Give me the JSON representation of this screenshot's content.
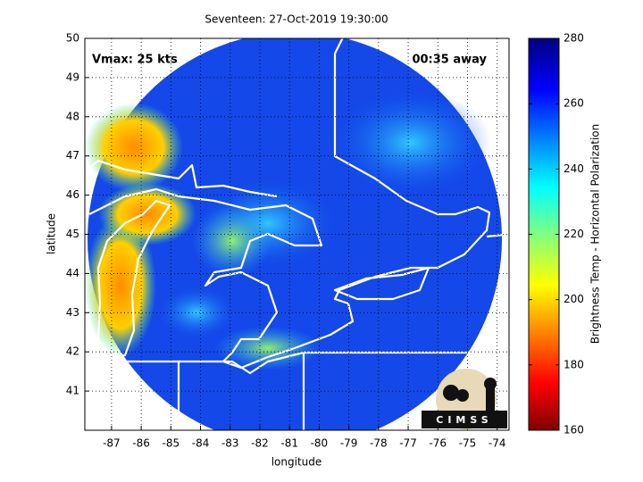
{
  "title": "Seventeen: 27-Oct-2019 19:30:00",
  "annotations": {
    "vmax": "Vmax: 25 kts",
    "away": "00:35 away"
  },
  "axes": {
    "x_label": "longitude",
    "y_label": "latitude",
    "xlim": [
      -87.9,
      -73.6
    ],
    "ylim": [
      40,
      50
    ],
    "xticks": [
      -87,
      -86,
      -85,
      -84,
      -83,
      -82,
      -81,
      -80,
      -79,
      -78,
      -77,
      -76,
      -75,
      -74
    ],
    "yticks": [
      41,
      42,
      43,
      44,
      45,
      46,
      47,
      48,
      49,
      50
    ]
  },
  "colorbar": {
    "label": "Brightness Temp - Horizontal Polarization",
    "lim": [
      160,
      280
    ],
    "ticks": [
      160,
      180,
      200,
      220,
      240,
      260,
      280
    ]
  },
  "logo": "CIMSS"
}
